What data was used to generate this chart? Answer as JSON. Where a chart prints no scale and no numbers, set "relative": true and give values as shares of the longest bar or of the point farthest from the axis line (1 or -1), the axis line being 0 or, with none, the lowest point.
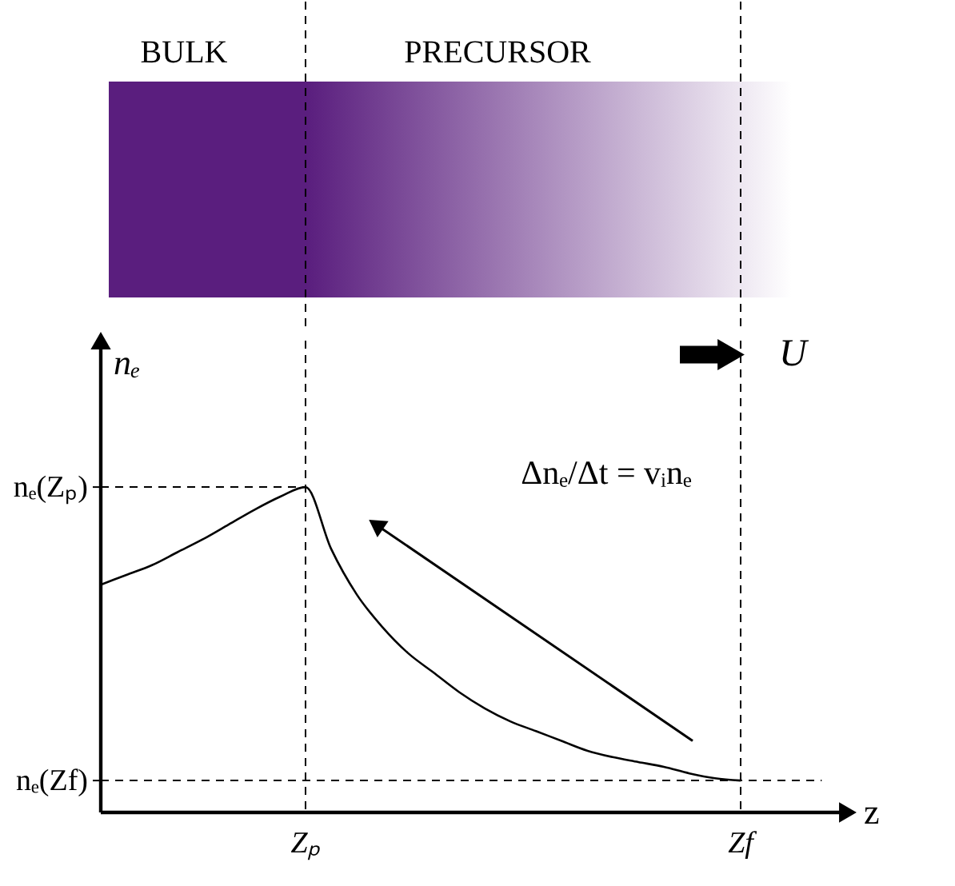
{
  "chart_data": {
    "type": "line",
    "relative": true,
    "xlabel": "z",
    "ylabel": "nₑ",
    "categories": [
      null,
      null,
      null,
      null,
      null,
      null,
      null,
      null,
      null,
      null,
      null,
      null,
      null,
      null,
      null,
      null,
      null,
      null,
      null,
      null,
      null,
      null,
      null,
      null,
      null,
      null
    ],
    "series": [
      {
        "color": "#000000",
        "values": [
          0.7,
          0.73,
          0.76,
          0.8,
          0.84,
          0.885,
          0.93,
          0.97,
          1.0,
          0.81,
          0.67,
          0.57,
          0.49,
          0.43,
          0.37,
          0.32,
          0.28,
          0.25,
          0.22,
          0.19,
          0.17,
          0.155,
          0.14,
          0.12,
          0.105,
          0.098
        ]
      }
    ],
    "ref_lines": [
      {
        "axis": "y",
        "value": 1.0,
        "color": "#000000",
        "line_style": "dashed"
      },
      {
        "axis": "y",
        "value": 0.098,
        "color": "#000000",
        "line_style": "dashed"
      }
    ],
    "annotations": [
      "BULK",
      "PRECURSOR",
      "U",
      "Δnₑ/Δt = vᵢnₑ",
      "Zₚ",
      "Zf",
      "nₑ(Zₚ)",
      "nₑ(Zf)"
    ],
    "marker": "none",
    "line_style": "solid",
    "grid": false
  }
}
